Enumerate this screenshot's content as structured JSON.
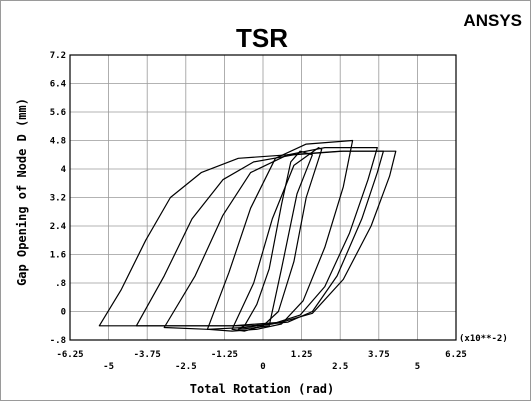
{
  "chart_data": {
    "type": "line",
    "title": "TSR",
    "brand": "ANSYS",
    "xlabel": "Total Rotation (rad)",
    "ylabel": "Gap Opening of Node D (mm)",
    "x_multiplier": "(x10**-2)",
    "xlim": [
      -6.25,
      6.25
    ],
    "ylim": [
      -0.8,
      7.2
    ],
    "grid": true,
    "x_ticks_upper": [
      "-6.25",
      "-3.75",
      "-1.25",
      "1.25",
      "3.75",
      "6.25"
    ],
    "x_ticks_lower": [
      "-5",
      "-2.5",
      "0",
      "2.5",
      "5"
    ],
    "y_ticks": [
      "7.2",
      "6.4",
      "5.6",
      "4.8",
      "4",
      "3.2",
      "2.4",
      "1.6",
      ".8",
      "0",
      "-.8"
    ],
    "series": [
      {
        "x": [
          0.2,
          0.6,
          1.1,
          1.6,
          1.2,
          0.9,
          0.6,
          0.2,
          -0.2,
          -0.6,
          -0.8,
          -0.2,
          0.2
        ],
        "y": [
          -0.4,
          1.2,
          3.3,
          4.4,
          4.5,
          4.2,
          3.0,
          1.2,
          0.2,
          -0.4,
          -0.5,
          -0.45,
          -0.4
        ]
      },
      {
        "x": [
          -1.0,
          -0.3,
          0.3,
          1.0,
          1.8,
          1.9,
          1.4,
          1.0,
          0.5,
          0.0,
          -0.6,
          -1.0
        ],
        "y": [
          -0.5,
          0.8,
          2.6,
          4.1,
          4.6,
          4.55,
          3.2,
          1.4,
          0.0,
          -0.4,
          -0.55,
          -0.5
        ]
      },
      {
        "x": [
          -1.8,
          -1.1,
          -0.4,
          0.4,
          1.4,
          2.9,
          2.6,
          2.0,
          1.3,
          0.6,
          -0.2,
          -1.0,
          -1.8
        ],
        "y": [
          -0.5,
          1.1,
          2.9,
          4.3,
          4.7,
          4.8,
          3.5,
          1.8,
          0.3,
          -0.35,
          -0.5,
          -0.55,
          -0.5
        ]
      },
      {
        "x": [
          -3.2,
          -2.2,
          -1.3,
          -0.4,
          0.8,
          2.0,
          3.7,
          3.4,
          2.8,
          2.0,
          1.2,
          0.3,
          -0.6,
          -1.8,
          -3.2
        ],
        "y": [
          -0.45,
          1.0,
          2.7,
          3.9,
          4.4,
          4.6,
          4.6,
          3.7,
          2.2,
          0.7,
          -0.1,
          -0.35,
          -0.45,
          -0.5,
          -0.45
        ]
      },
      {
        "x": [
          -4.1,
          -3.2,
          -2.3,
          -1.3,
          -0.3,
          1.0,
          2.6,
          3.9,
          3.7,
          3.2,
          2.4,
          1.6,
          0.8,
          -0.4,
          -2.0,
          -4.1
        ],
        "y": [
          -0.4,
          1.0,
          2.6,
          3.7,
          4.2,
          4.4,
          4.5,
          4.5,
          3.9,
          2.6,
          1.0,
          0.0,
          -0.3,
          -0.4,
          -0.4,
          -0.4
        ]
      },
      {
        "x": [
          -5.3,
          -4.6,
          -3.8,
          -3.0,
          -2.0,
          -0.8,
          0.8,
          2.5,
          4.3,
          4.1,
          3.5,
          2.6,
          1.6,
          0.6,
          -1.0,
          -3.0,
          -5.3
        ],
        "y": [
          -0.4,
          0.6,
          2.0,
          3.2,
          3.9,
          4.3,
          4.4,
          4.5,
          4.5,
          3.8,
          2.4,
          0.9,
          -0.05,
          -0.3,
          -0.4,
          -0.4,
          -0.4
        ]
      }
    ]
  }
}
